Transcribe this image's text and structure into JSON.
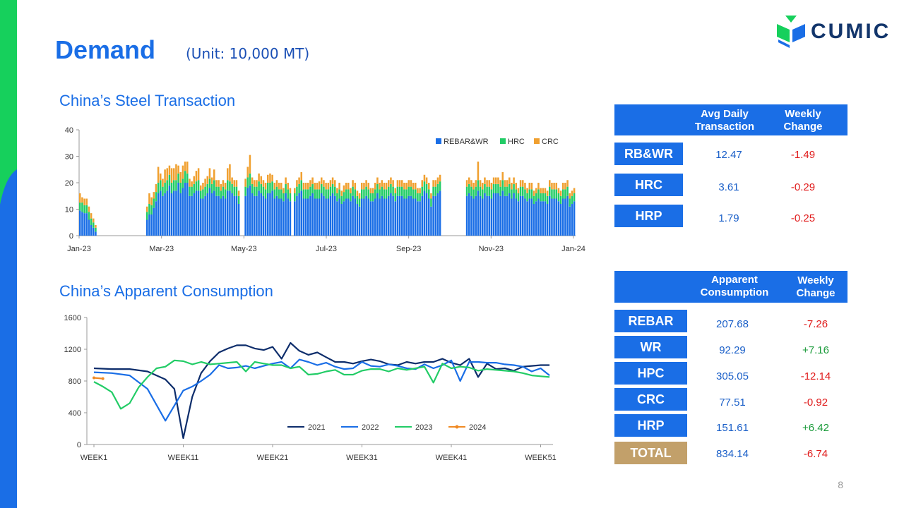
{
  "header": {
    "title": "Demand",
    "unit": "(Unit: 10,000 MT)",
    "logo_text": "CUMIC"
  },
  "colors": {
    "brand_blue": "#1a6ee6",
    "brand_green": "#16d05c",
    "bar_rebar": "#1a6ee6",
    "bar_hrc": "#22cc66",
    "bar_crc": "#f0a030",
    "total_label": "#c2a06a"
  },
  "transaction_section": {
    "title": "China’s Steel Transaction"
  },
  "consumption_section": {
    "title": "China’s Apparent Consumption"
  },
  "transaction_table": {
    "headers": [
      "Avg Daily\nTransaction",
      "Weekly\nChange"
    ],
    "rows": [
      {
        "label": "RB&WR",
        "value": "12.47",
        "change": "-1.49"
      },
      {
        "label": "HRC",
        "value": "3.61",
        "change": "-0.29"
      },
      {
        "label": "HRP",
        "value": "1.79",
        "change": "-0.25"
      }
    ]
  },
  "consumption_table": {
    "headers": [
      "Apparent\nConsumption",
      "Weekly\nChange"
    ],
    "rows": [
      {
        "label": "REBAR",
        "value": "207.68",
        "change": "-7.26"
      },
      {
        "label": "WR",
        "value": "92.29",
        "change": "+7.16"
      },
      {
        "label": "HPC",
        "value": "305.05",
        "change": "-12.14"
      },
      {
        "label": "CRC",
        "value": "77.51",
        "change": "-0.92"
      },
      {
        "label": "HRP",
        "value": "151.61",
        "change": "+6.42"
      },
      {
        "label": "TOTAL",
        "value": "834.14",
        "change": "-6.74"
      }
    ]
  },
  "page_number": "8",
  "chart_data": [
    {
      "type": "bar",
      "stacked": true,
      "x_tick_labels": [
        "Jan-23",
        "Mar-23",
        "May-23",
        "Jul-23",
        "Sep-23",
        "Nov-23",
        "Jan-24"
      ],
      "ylim": [
        0,
        40
      ],
      "y_ticks": [
        0,
        10,
        20,
        30,
        40
      ],
      "legend": {
        "position": "top-right"
      },
      "series": [
        {
          "name": "REBAR&WR",
          "values": [
            9.5,
            9,
            8.5,
            8.5,
            6,
            4,
            3,
            1.5,
            0,
            0,
            0,
            0,
            0,
            0,
            0,
            0,
            0,
            0,
            0,
            0,
            0,
            0,
            0,
            0,
            0,
            0,
            0,
            0,
            0,
            0,
            6,
            8,
            8,
            10.5,
            13,
            16,
            17,
            15,
            16,
            17,
            19,
            16,
            17,
            17,
            20,
            16,
            18,
            20,
            20,
            15,
            15,
            16,
            17,
            17,
            14,
            14,
            15,
            16,
            18,
            16,
            17,
            15,
            15,
            14,
            15,
            14,
            17,
            17,
            16,
            15,
            15,
            12,
            0,
            0,
            15,
            18,
            19,
            16,
            15,
            15,
            17,
            16,
            15,
            14,
            16,
            16,
            17,
            14,
            15,
            14,
            14,
            13,
            16,
            14,
            13,
            0,
            13,
            15,
            16,
            17,
            14,
            14,
            14,
            15,
            16,
            14,
            14,
            14,
            16,
            15,
            14,
            14,
            15,
            16,
            15,
            13,
            14,
            12,
            13,
            14,
            14,
            13,
            15,
            14,
            12,
            11,
            14,
            14,
            15,
            14,
            13,
            13,
            14,
            16,
            14,
            15,
            14,
            14,
            15,
            16,
            15,
            13,
            15,
            15,
            15,
            14,
            14,
            15,
            15,
            14,
            14,
            13,
            13,
            15,
            17,
            16,
            14,
            11,
            15,
            15,
            16,
            17,
            0,
            0,
            0,
            0,
            0,
            0,
            0,
            0,
            0,
            0,
            0,
            15,
            16,
            15,
            14,
            15,
            17,
            15,
            14,
            16,
            15,
            15,
            14,
            16,
            16,
            16,
            15,
            17,
            15,
            15,
            16,
            14,
            16,
            14,
            13,
            15,
            15,
            14,
            13,
            14,
            14,
            12,
            13,
            14,
            13,
            13,
            13,
            12,
            15,
            14,
            14,
            14,
            13,
            12,
            14,
            14,
            15,
            11,
            12,
            13
          ]
        },
        {
          "name": "HRC",
          "values": [
            3,
            3.5,
            3,
            3,
            3,
            2.5,
            2,
            1.5,
            0,
            0,
            0,
            0,
            0,
            0,
            0,
            0,
            0,
            0,
            0,
            0,
            0,
            0,
            0,
            0,
            0,
            0,
            0,
            0,
            0,
            0,
            3,
            4,
            3.5,
            3.5,
            3.5,
            4,
            4,
            3.5,
            4,
            4,
            4,
            4,
            4,
            4,
            3.5,
            4,
            3.5,
            4.5,
            3.5,
            3.5,
            3.5,
            3.5,
            3.5,
            4,
            3,
            3.5,
            3.5,
            3.5,
            3.5,
            3.5,
            4,
            3.5,
            3.5,
            3,
            3.5,
            3.5,
            4,
            3.5,
            3.5,
            3.5,
            3.5,
            3,
            0,
            0,
            3.5,
            4,
            4.5,
            3.5,
            3.5,
            3.5,
            3.5,
            3.5,
            3.5,
            3.5,
            4,
            4,
            3.5,
            3.5,
            3.5,
            3.5,
            3.5,
            3,
            3.5,
            3.5,
            3,
            0,
            3,
            3.5,
            3.5,
            4,
            3.5,
            3.5,
            3.5,
            3.5,
            3.5,
            3.5,
            3.5,
            3.5,
            3.5,
            3.5,
            3.5,
            3.5,
            3.5,
            3.5,
            3.5,
            3,
            3.5,
            3,
            3.5,
            3.5,
            3.5,
            3,
            3.5,
            3.5,
            3,
            3,
            3.5,
            3.5,
            3.5,
            3.5,
            3,
            3,
            3.5,
            3.5,
            3.5,
            3.5,
            3.5,
            3.5,
            3.5,
            3.5,
            3.5,
            3,
            3.5,
            3.5,
            3.5,
            3.5,
            3.5,
            3.5,
            3.5,
            3.5,
            3.5,
            3,
            3,
            3.5,
            3.5,
            3.5,
            3.5,
            3,
            3.5,
            3.5,
            3.5,
            3.5,
            0,
            0,
            0,
            0,
            0,
            0,
            0,
            0,
            0,
            0,
            0,
            3.5,
            3.5,
            3.5,
            3.5,
            3.5,
            4,
            3.5,
            3.5,
            3.5,
            3.5,
            3.5,
            3.5,
            3.5,
            3.5,
            3.5,
            3.5,
            4,
            3.5,
            3.5,
            3.5,
            3.5,
            3.5,
            3.5,
            3,
            3.5,
            3.5,
            3.5,
            3,
            3.5,
            3.5,
            3,
            3,
            3.5,
            3,
            3,
            3,
            3,
            3.5,
            3.5,
            3.5,
            3.5,
            3,
            3,
            3.5,
            3.5,
            3.5,
            3,
            3,
            3
          ]
        },
        {
          "name": "CRC",
          "values": [
            3.5,
            2,
            2.5,
            2.5,
            2,
            2,
            1.5,
            1,
            0,
            0,
            0,
            0,
            0,
            0,
            0,
            0,
            0,
            0,
            0,
            0,
            0,
            0,
            0,
            0,
            0,
            0,
            0,
            0,
            0,
            0,
            2,
            4,
            3,
            2.5,
            3,
            6,
            2.5,
            3,
            5,
            4.5,
            3.5,
            5.5,
            4.5,
            6,
            3,
            4,
            5,
            3.5,
            4.5,
            3,
            2,
            3,
            4,
            4.5,
            2,
            2.5,
            3,
            3,
            4,
            2.5,
            4,
            2.5,
            2.5,
            2.5,
            2.5,
            2.5,
            4.5,
            6.5,
            2.5,
            2.5,
            2.5,
            2,
            0,
            0,
            3,
            4,
            7,
            2.5,
            2.5,
            2.5,
            3,
            3,
            2.5,
            2.5,
            3,
            3.5,
            2.5,
            2.5,
            2.5,
            2.5,
            2.5,
            2,
            2.5,
            2.5,
            2,
            0,
            2,
            2.5,
            2.5,
            3,
            2.5,
            2.5,
            2.5,
            2.5,
            2.5,
            2.5,
            2.5,
            3,
            2.5,
            2.5,
            2.5,
            2.5,
            2.5,
            2.5,
            2.5,
            2,
            2.5,
            2,
            2.5,
            2.5,
            2.5,
            2,
            2.5,
            2.5,
            2,
            2,
            2.5,
            2.5,
            2.5,
            2.5,
            2,
            2,
            2.5,
            2.5,
            2.5,
            2.5,
            2.5,
            2.5,
            2.5,
            2.5,
            2.5,
            2,
            2.5,
            2.5,
            2.5,
            2.5,
            2.5,
            2.5,
            2.5,
            2.5,
            2.5,
            2,
            2,
            2.5,
            2.5,
            2.5,
            2.5,
            2,
            2.5,
            2.5,
            2.5,
            2.5,
            0,
            0,
            0,
            0,
            0,
            0,
            0,
            0,
            0,
            0,
            0,
            2.5,
            2.5,
            2.5,
            2.5,
            2.5,
            7,
            2.5,
            2.5,
            2.5,
            2.5,
            2.5,
            2.5,
            2.5,
            2.5,
            2.5,
            2.5,
            3,
            2.5,
            2.5,
            2.5,
            2.5,
            2.5,
            2.5,
            2,
            2.5,
            2.5,
            2.5,
            2,
            2.5,
            2.5,
            2,
            2,
            2.5,
            2,
            2,
            2,
            2,
            2.5,
            2.5,
            2.5,
            2.5,
            2,
            2,
            2.5,
            2.5,
            2.5,
            2,
            2,
            2
          ]
        }
      ]
    },
    {
      "type": "line",
      "x_tick_labels": [
        "WEEK1",
        "WEEK11",
        "WEEK21",
        "WEEK31",
        "WEEK41",
        "WEEK51"
      ],
      "x_ticks": [
        1,
        11,
        21,
        31,
        41,
        51
      ],
      "x_range": [
        1,
        53
      ],
      "ylim": [
        0,
        1600
      ],
      "y_ticks": [
        0,
        400,
        800,
        1200,
        1600
      ],
      "legend": {
        "position": "bottom"
      },
      "series": [
        {
          "name": "2021",
          "color": "#0d2d6b",
          "x": [
            1,
            3,
            5,
            7,
            9,
            10,
            11,
            12,
            13,
            14,
            15,
            16,
            17,
            18,
            19,
            20,
            21,
            22,
            23,
            24,
            25,
            26,
            27,
            28,
            29,
            30,
            31,
            32,
            33,
            34,
            35,
            36,
            37,
            38,
            39,
            40,
            41,
            42,
            43,
            44,
            45,
            46,
            47,
            48,
            49,
            50,
            51,
            52
          ],
          "values": [
            960,
            950,
            950,
            920,
            820,
            700,
            80,
            600,
            900,
            1050,
            1160,
            1210,
            1250,
            1250,
            1210,
            1190,
            1230,
            1080,
            1280,
            1180,
            1130,
            1160,
            1100,
            1040,
            1040,
            1020,
            1050,
            1070,
            1050,
            1010,
            1000,
            1040,
            1020,
            1040,
            1040,
            1080,
            1030,
            1000,
            1080,
            850,
            1020,
            950,
            960,
            930,
            980,
            990,
            1000,
            1000
          ]
        },
        {
          "name": "2022",
          "color": "#1a6ee6",
          "x": [
            1,
            3,
            5,
            7,
            9,
            11,
            12,
            13,
            14,
            15,
            16,
            17,
            18,
            19,
            20,
            21,
            22,
            23,
            24,
            25,
            26,
            27,
            28,
            29,
            30,
            31,
            32,
            33,
            34,
            35,
            36,
            37,
            38,
            39,
            40,
            41,
            42,
            43,
            44,
            45,
            46,
            47,
            48,
            49,
            50,
            51,
            52
          ],
          "values": [
            910,
            900,
            870,
            700,
            300,
            680,
            730,
            800,
            880,
            1000,
            960,
            970,
            990,
            960,
            990,
            1020,
            1040,
            960,
            1070,
            1040,
            1000,
            1030,
            980,
            950,
            960,
            1040,
            990,
            980,
            1010,
            990,
            960,
            950,
            1010,
            960,
            1000,
            1060,
            800,
            1040,
            1040,
            1030,
            1030,
            1010,
            1000,
            980,
            920,
            960,
            870
          ]
        },
        {
          "name": "2023",
          "color": "#22cc66",
          "x": [
            1,
            2,
            3,
            4,
            5,
            6,
            7,
            8,
            9,
            10,
            11,
            12,
            13,
            14,
            15,
            16,
            17,
            18,
            19,
            20,
            21,
            22,
            23,
            24,
            25,
            26,
            27,
            28,
            29,
            30,
            31,
            32,
            33,
            34,
            35,
            36,
            37,
            38,
            39,
            40,
            41,
            42,
            43,
            44,
            45,
            46,
            47,
            48,
            49,
            50,
            51,
            52
          ],
          "values": [
            790,
            730,
            660,
            450,
            520,
            720,
            850,
            960,
            980,
            1060,
            1050,
            1010,
            1040,
            1010,
            1020,
            1030,
            1040,
            920,
            1040,
            1020,
            1000,
            1000,
            960,
            980,
            880,
            890,
            920,
            940,
            880,
            880,
            930,
            950,
            950,
            920,
            960,
            940,
            960,
            980,
            780,
            1020,
            960,
            980,
            970,
            930,
            950,
            940,
            930,
            920,
            900,
            870,
            860,
            850
          ]
        },
        {
          "name": "2024",
          "color": "#f08a24",
          "x": [
            1,
            2
          ],
          "values": [
            840,
            830
          ]
        }
      ]
    }
  ]
}
